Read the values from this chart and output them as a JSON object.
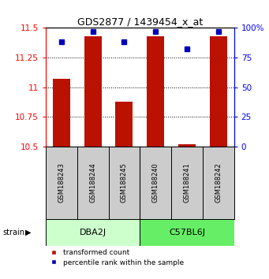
{
  "title": "GDS2877 / 1439454_x_at",
  "samples": [
    "GSM188243",
    "GSM188244",
    "GSM188245",
    "GSM188240",
    "GSM188241",
    "GSM188242"
  ],
  "transformed_counts": [
    11.07,
    11.43,
    10.88,
    11.43,
    10.52,
    11.43
  ],
  "percentile_ranks": [
    88,
    97,
    88,
    97,
    82,
    97
  ],
  "ylim_left": [
    10.5,
    11.5
  ],
  "ylim_right": [
    0,
    100
  ],
  "yticks_left": [
    10.5,
    10.75,
    11.0,
    11.25,
    11.5
  ],
  "ytick_labels_left": [
    "10.5",
    "10.75",
    "11",
    "11.25",
    "11.5"
  ],
  "yticks_right": [
    0,
    25,
    50,
    75,
    100
  ],
  "ytick_labels_right": [
    "0",
    "25",
    "50",
    "75",
    "100%"
  ],
  "bar_color": "#bb1100",
  "dot_color": "#0000bb",
  "bar_width": 0.55,
  "bar_bottom": 10.5,
  "group1_bg": "#ccffcc",
  "group2_bg": "#66ee66",
  "sample_box_color": "#cccccc",
  "legend_red_label": "transformed count",
  "legend_blue_label": "percentile rank within the sample",
  "strain_label": "strain",
  "group1_name": "DBA2J",
  "group2_name": "C57BL6J"
}
